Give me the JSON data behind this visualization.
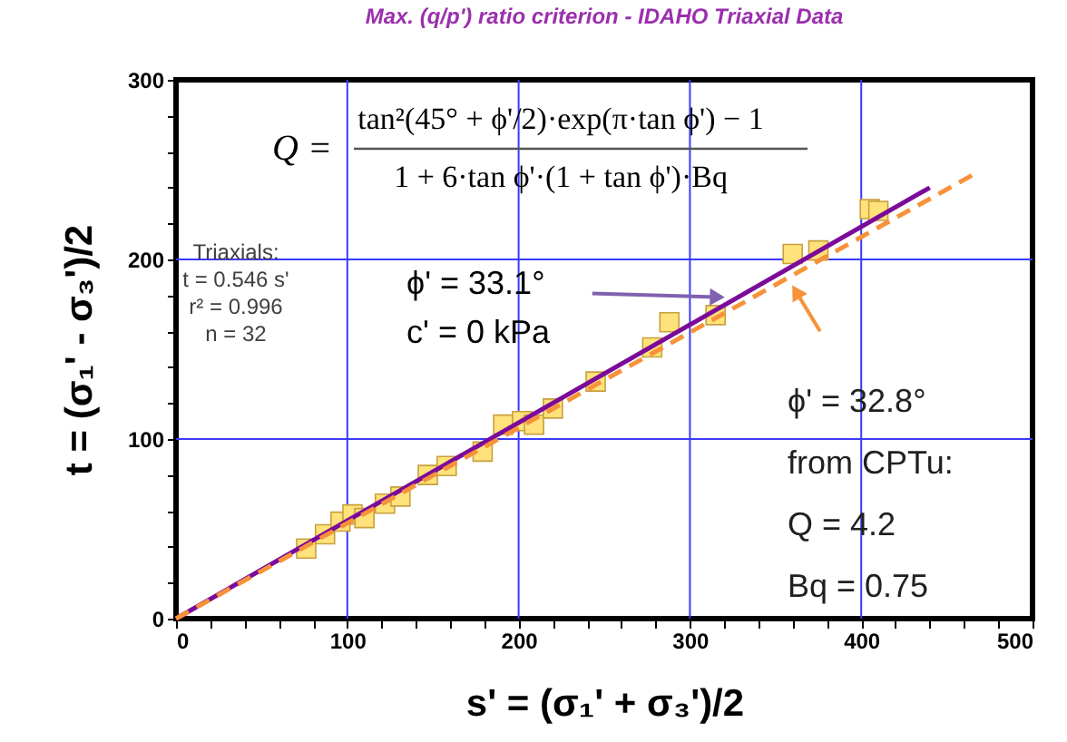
{
  "chart_data": {
    "type": "scatter",
    "title": "Max. (q/p') ratio criterion - IDAHO Triaxial Data",
    "xlabel": "s' = (σ₁' + σ₃')/2",
    "ylabel": "t = (σ₁' - σ₃')/2",
    "xlim": [
      0,
      500
    ],
    "ylim": [
      0,
      300
    ],
    "xticks": [
      0,
      {
        "value": 20,
        "label": null
      },
      {
        "value": 40,
        "label": null
      },
      {
        "value": 60,
        "label": null
      },
      {
        "value": 80,
        "label": null
      },
      100,
      {
        "value": 120,
        "label": null
      },
      {
        "value": 140,
        "label": null
      },
      {
        "value": 160,
        "label": null
      },
      {
        "value": 180,
        "label": null
      },
      200,
      {
        "value": 220,
        "label": null
      },
      {
        "value": 240,
        "label": null
      },
      {
        "value": 260,
        "label": null
      },
      {
        "value": 280,
        "label": null
      },
      300,
      {
        "value": 320,
        "label": null
      },
      {
        "value": 340,
        "label": null
      },
      {
        "value": 360,
        "label": null
      },
      {
        "value": 380,
        "label": null
      },
      400,
      {
        "value": 420,
        "label": null
      },
      {
        "value": 440,
        "label": null
      },
      {
        "value": 460,
        "label": null
      },
      {
        "value": 480,
        "label": null
      },
      500
    ],
    "yticks": [
      0,
      {
        "value": 20,
        "label": null
      },
      {
        "value": 40,
        "label": null
      },
      {
        "value": 60,
        "label": null
      },
      {
        "value": 80,
        "label": null
      },
      100,
      {
        "value": 120,
        "label": null
      },
      {
        "value": 140,
        "label": null
      },
      {
        "value": 160,
        "label": null
      },
      {
        "value": 180,
        "label": null
      },
      200,
      {
        "value": 220,
        "label": null
      },
      {
        "value": 240,
        "label": null
      },
      {
        "value": 260,
        "label": null
      },
      {
        "value": 280,
        "label": null
      },
      300
    ],
    "grid": true,
    "series": [
      {
        "marker": "square",
        "color": "#ffe27a",
        "x": [
          76,
          87,
          96,
          103,
          110,
          122,
          131,
          147,
          158,
          179,
          191,
          202,
          209,
          220,
          245,
          278,
          288,
          315,
          360,
          375,
          405,
          410
        ],
        "values": [
          39,
          47,
          54,
          58,
          56,
          64,
          68,
          80,
          85,
          93,
          108,
          110,
          108,
          117,
          132,
          151,
          165,
          169,
          203,
          205,
          228,
          227
        ]
      },
      {
        "type": "line",
        "color": "#7b0a9a",
        "line_style": "solid",
        "x": [
          0,
          440
        ],
        "values": [
          0,
          240
        ]
      },
      {
        "type": "line",
        "color": "#f7923a",
        "line_style": "dashed",
        "x": [
          0,
          465
        ],
        "values": [
          0,
          247
        ]
      }
    ],
    "annotations": [
      "Q =",
      "tan²(45° + ϕ'/2)·exp(π·tan ϕ') − 1",
      "1 + 6·tan ϕ'·(1 + tan ϕ')·Bq",
      "Triaxials:\nt = 0.546 s'\nr² = 0.996\nn = 32",
      "ϕ' = 33.1°\nc' = 0 kPa",
      "ϕ' = 32.8°\nfrom CPTu:\nQ = 4.2\nBq = 0.75"
    ]
  }
}
